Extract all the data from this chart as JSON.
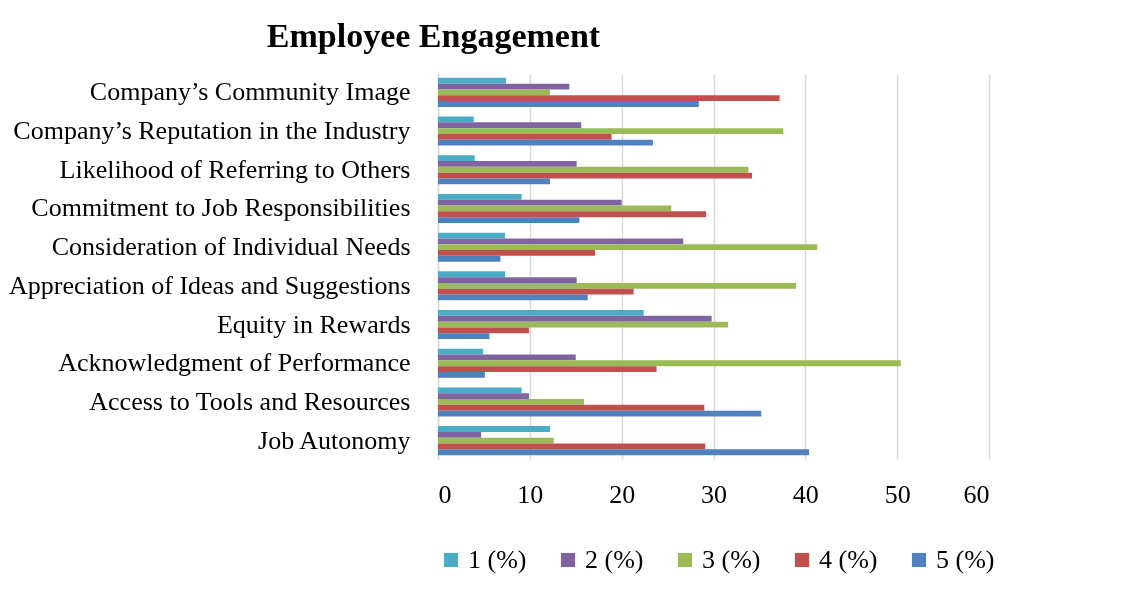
{
  "chart_data": {
    "type": "bar",
    "orientation": "horizontal",
    "title": "Employee Engagement",
    "categories": [
      "Company’s Community Image",
      "Company’s Reputation in the Industry",
      "Likelihood of Referring to Others",
      "Commitment to Job Responsibilities",
      "Consideration of Individual Needs",
      "Appreciation of Ideas and Suggestions",
      "Equity in Rewards",
      "Acknowledgment of Performance",
      "Access to Tools and Resources",
      "Job Autonomy"
    ],
    "series": [
      {
        "name": "1 (%)",
        "color": "#4bacc6",
        "values": [
          7.4,
          3.9,
          4.0,
          9.1,
          7.3,
          7.3,
          22.4,
          4.9,
          9.1,
          12.2
        ]
      },
      {
        "name": "2 (%)",
        "color": "#8064a2",
        "values": [
          14.3,
          15.6,
          15.1,
          20.0,
          26.7,
          15.1,
          29.8,
          15.0,
          9.9,
          4.7
        ]
      },
      {
        "name": "3 (%)",
        "color": "#9bbb59",
        "values": [
          12.2,
          37.6,
          33.8,
          25.4,
          41.3,
          39.0,
          31.6,
          50.4,
          15.9,
          12.6
        ]
      },
      {
        "name": "4 (%)",
        "color": "#c0504d",
        "values": [
          37.2,
          18.9,
          34.2,
          29.2,
          17.1,
          21.3,
          9.9,
          23.8,
          29.0,
          29.1
        ]
      },
      {
        "name": "5 (%)",
        "color": "#4f81bd",
        "values": [
          28.4,
          23.4,
          12.2,
          15.4,
          6.8,
          16.3,
          5.6,
          5.1,
          35.2,
          40.4
        ]
      }
    ],
    "xlim": [
      0,
      60
    ],
    "xticks": [
      0,
      10,
      20,
      30,
      40,
      50,
      60
    ],
    "grid": "x",
    "legend": "bottom"
  }
}
